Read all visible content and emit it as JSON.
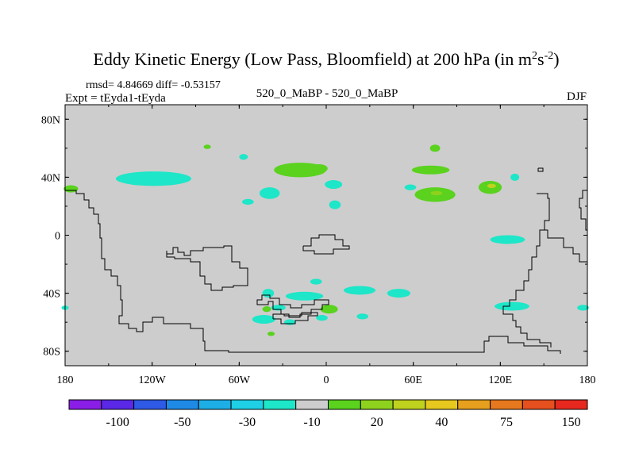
{
  "chart_data": {
    "type": "heatmap",
    "title_main": "Eddy Kinetic Energy (Low Pass, Bloomfield) at 200 hPa (in m",
    "title_sup1": "2",
    "title_mid": "s",
    "title_sup2": "-2",
    "title_end": ")",
    "left_string_1": "rmsd= 4.84669  diff= -0.53157",
    "left_string_2": "Expt = tEyda1-tEyda",
    "center_string": "520_0_MaBP - 520_0_MaBP",
    "right_string": "DJF",
    "x_range": [
      -180,
      180
    ],
    "y_range": [
      -90,
      90
    ],
    "x_ticks": [
      {
        "value": -180,
        "label": "180"
      },
      {
        "value": -120,
        "label": "120W"
      },
      {
        "value": -60,
        "label": "60W"
      },
      {
        "value": 0,
        "label": "0"
      },
      {
        "value": 60,
        "label": "60E"
      },
      {
        "value": 120,
        "label": "120E"
      },
      {
        "value": 180,
        "label": "180"
      }
    ],
    "y_ticks": [
      {
        "value": 80,
        "label": "80N"
      },
      {
        "value": 40,
        "label": "40N"
      },
      {
        "value": 0,
        "label": "0"
      },
      {
        "value": -40,
        "label": "40S"
      },
      {
        "value": -80,
        "label": "80S"
      }
    ],
    "colorbar": {
      "colors": [
        "#8a1ee6",
        "#5a28e6",
        "#2e5ae6",
        "#1e8ae6",
        "#1eaee6",
        "#1ecfe6",
        "#1ee6c8",
        "#cdcdcd",
        "#5ad21e",
        "#8ed21e",
        "#bed21e",
        "#e6c81e",
        "#e6a01e",
        "#e6781e",
        "#e6501e",
        "#e6281e"
      ],
      "tick_labels": [
        {
          "after_box": 2,
          "label": "-100"
        },
        {
          "after_box": 4,
          "label": "-50"
        },
        {
          "after_box": 6,
          "label": "-30"
        },
        {
          "after_box": 8,
          "label": "-10"
        },
        {
          "after_box": 10,
          "label": "20"
        },
        {
          "after_box": 12,
          "label": "40"
        },
        {
          "after_box": 14,
          "label": "75"
        },
        {
          "after_box": 16,
          "label": "150"
        }
      ]
    },
    "background_value_color": "#cdcdcd",
    "anomaly_patches": [
      {
        "lon": -119,
        "lat": 39,
        "dlon": 26,
        "dlat": 5,
        "color": "#1ee6c8"
      },
      {
        "lon": -120,
        "lat": 40,
        "dlon": 12,
        "dlat": 3,
        "color": "#1ee6c8"
      },
      {
        "lon": -176,
        "lat": 32,
        "dlon": 5,
        "dlat": 2.5,
        "color": "#5ad21e"
      },
      {
        "lon": -57,
        "lat": 54,
        "dlon": 3,
        "dlat": 2,
        "color": "#1ee6c8"
      },
      {
        "lon": -39,
        "lat": 29,
        "dlon": 7,
        "dlat": 4,
        "color": "#1ee6c8"
      },
      {
        "lon": -18,
        "lat": 45,
        "dlon": 18,
        "dlat": 5,
        "color": "#5ad21e"
      },
      {
        "lon": -5,
        "lat": 46,
        "dlon": 6,
        "dlat": 3,
        "color": "#5ad21e"
      },
      {
        "lon": 5,
        "lat": 35,
        "dlon": 6,
        "dlat": 3,
        "color": "#1ee6c8"
      },
      {
        "lon": 6,
        "lat": 21,
        "dlon": 4,
        "dlat": 3,
        "color": "#1ee6c8"
      },
      {
        "lon": -54,
        "lat": 23,
        "dlon": 4,
        "dlat": 2,
        "color": "#1ee6c8"
      },
      {
        "lon": -82,
        "lat": 61,
        "dlon": 2.5,
        "dlat": 1.5,
        "color": "#5ad21e"
      },
      {
        "lon": 75,
        "lat": 60,
        "dlon": 3.5,
        "dlat": 2.5,
        "color": "#5ad21e"
      },
      {
        "lon": 72,
        "lat": 45,
        "dlon": 13,
        "dlat": 3,
        "color": "#5ad21e"
      },
      {
        "lon": 75,
        "lat": 28,
        "dlon": 14,
        "dlat": 5,
        "color": "#5ad21e"
      },
      {
        "lon": 76,
        "lat": 29,
        "dlon": 4,
        "dlat": 1.5,
        "color": "#8ed21e"
      },
      {
        "lon": 58,
        "lat": 33,
        "dlon": 4,
        "dlat": 2,
        "color": "#1ee6c8"
      },
      {
        "lon": 113,
        "lat": 33,
        "dlon": 8,
        "dlat": 4.5,
        "color": "#5ad21e"
      },
      {
        "lon": 114,
        "lat": 34,
        "dlon": 3,
        "dlat": 1.5,
        "color": "#bed21e"
      },
      {
        "lon": 130,
        "lat": 40,
        "dlon": 3,
        "dlat": 2.5,
        "color": "#1ee6c8"
      },
      {
        "lon": 125,
        "lat": -3,
        "dlon": 12,
        "dlat": 3,
        "color": "#1ee6c8"
      },
      {
        "lon": -40,
        "lat": -40,
        "dlon": 4,
        "dlat": 3,
        "color": "#1ee6c8"
      },
      {
        "lon": -15,
        "lat": -42,
        "dlon": 13,
        "dlat": 3,
        "color": "#1ee6c8"
      },
      {
        "lon": 23,
        "lat": -38,
        "dlon": 11,
        "dlat": 3,
        "color": "#1ee6c8"
      },
      {
        "lon": 50,
        "lat": -40,
        "dlon": 8,
        "dlat": 3,
        "color": "#1ee6c8"
      },
      {
        "lon": -7,
        "lat": -32,
        "dlon": 4,
        "dlat": 2,
        "color": "#1ee6c8"
      },
      {
        "lon": 2,
        "lat": -51,
        "dlon": 6,
        "dlat": 3,
        "color": "#5ad21e"
      },
      {
        "lon": -41,
        "lat": -51,
        "dlon": 3,
        "dlat": 2,
        "color": "#5ad21e"
      },
      {
        "lon": -43,
        "lat": -58,
        "dlon": 8,
        "dlat": 3,
        "color": "#1ee6c8"
      },
      {
        "lon": -33,
        "lat": -50,
        "dlon": 5,
        "dlat": 2,
        "color": "#1ee6c8"
      },
      {
        "lon": -25,
        "lat": -60,
        "dlon": 4,
        "dlat": 2,
        "color": "#1ee6c8"
      },
      {
        "lon": -3,
        "lat": -57,
        "dlon": 4,
        "dlat": 2,
        "color": "#1ee6c8"
      },
      {
        "lon": 25,
        "lat": -56,
        "dlon": 4,
        "dlat": 2,
        "color": "#1ee6c8"
      },
      {
        "lon": -38,
        "lat": -68,
        "dlon": 2.5,
        "dlat": 1.5,
        "color": "#5ad21e"
      },
      {
        "lon": 128,
        "lat": -49,
        "dlon": 12,
        "dlat": 3,
        "color": "#1ee6c8"
      },
      {
        "lon": 177,
        "lat": -50,
        "dlon": 4,
        "dlat": 2,
        "color": "#1ee6c8"
      },
      {
        "lon": -180,
        "lat": -50,
        "dlon": 2.5,
        "dlat": 1.5,
        "color": "#1ee6c8"
      }
    ]
  }
}
